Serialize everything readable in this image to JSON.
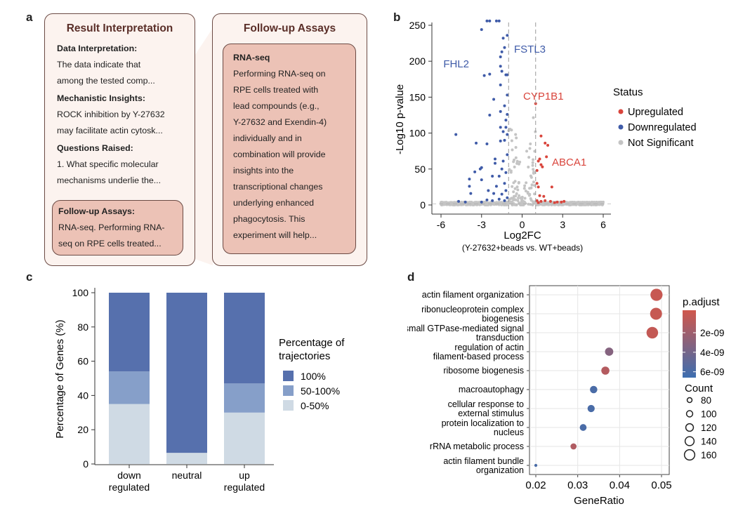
{
  "panel_labels": [
    "a",
    "b",
    "c",
    "d"
  ],
  "panel_a": {
    "left_card": {
      "title": "Result Interpretation",
      "sections": [
        {
          "heading": "Data Interpretation:",
          "lines": [
            "The data indicate that",
            "among the tested comp..."
          ]
        },
        {
          "heading": "Mechanistic Insights:",
          "lines": [
            "ROCK inhibition by Y-27632",
            "may facilitate actin cytosk..."
          ]
        },
        {
          "heading": "Questions Raised:",
          "lines": [
            "1. What specific molecular",
            "mechanisms underlie the..."
          ]
        }
      ],
      "highlight": {
        "heading": "Follow-up Assays:",
        "lines": [
          "RNA-seq. Performing RNA-",
          "seq on RPE cells treated..."
        ]
      }
    },
    "right_card": {
      "title": "Follow-up Assays",
      "inner": {
        "heading": "RNA-seq",
        "lines": [
          "Performing RNA-seq on",
          "RPE cells treated with",
          "lead compounds (e.g.,",
          "Y-27632 and Exendin-4)",
          "individually and in",
          "combination will provide",
          "insights into the",
          "transcriptional changes",
          "underlying enhanced",
          "phagocytosis. This",
          "experiment will help..."
        ]
      }
    }
  },
  "chart_data": [
    {
      "type": "scatter",
      "panel": "b",
      "xlabel": "Log2FC",
      "xlabel_sub": "(Y-27632+beads vs. WT+beads)",
      "ylabel": "-Log10 p-value",
      "xlim": [
        -6.4,
        6.4
      ],
      "ylim": [
        -5,
        255
      ],
      "xticks": [
        -6,
        -3,
        0,
        3,
        6
      ],
      "yticks": [
        0,
        50,
        100,
        150,
        200,
        250
      ],
      "thresholds_x": [
        -1,
        1
      ],
      "legend": {
        "title": "Status",
        "position": "right",
        "entries": [
          {
            "name": "Upregulated",
            "color": "#d9453c"
          },
          {
            "name": "Downregulated",
            "color": "#3f5ba8"
          },
          {
            "name": "Not Significant",
            "color": "#c4c4c4"
          }
        ]
      },
      "labels": [
        {
          "text": "FSTL3",
          "x": -1.3,
          "y": 219,
          "color": "#3f5ba8"
        },
        {
          "text": "FHL2",
          "x": -1.5,
          "y": 213,
          "color": "#3f5ba8"
        },
        {
          "text": "CYP1B1",
          "x": 1.0,
          "y": 141,
          "color": "#d9453c"
        },
        {
          "text": "ABCA1",
          "x": 1.8,
          "y": 85,
          "color": "#d9453c"
        }
      ],
      "points": {
        "Downregulated": [
          [
            -2.6,
            256
          ],
          [
            -2.4,
            256
          ],
          [
            -1.9,
            256
          ],
          [
            -1.7,
            256
          ],
          [
            -3.0,
            244
          ],
          [
            -1.4,
            232
          ],
          [
            -1.1,
            236
          ],
          [
            -1.3,
            219
          ],
          [
            -1.5,
            213
          ],
          [
            -1.6,
            206
          ],
          [
            -1.6,
            193
          ],
          [
            -2.8,
            180
          ],
          [
            -2.4,
            182
          ],
          [
            -1.5,
            186
          ],
          [
            -1.2,
            181
          ],
          [
            -1.1,
            181
          ],
          [
            -1.6,
            167
          ],
          [
            -1.1,
            153
          ],
          [
            -2.1,
            147
          ],
          [
            -1.3,
            138
          ],
          [
            -1.6,
            130
          ],
          [
            -2.4,
            125
          ],
          [
            -1.1,
            126
          ],
          [
            -1.2,
            118
          ],
          [
            -1.6,
            108
          ],
          [
            -1.4,
            102
          ],
          [
            -1.2,
            108
          ],
          [
            -4.9,
            98
          ],
          [
            -3.4,
            86
          ],
          [
            -2.6,
            85
          ],
          [
            -1.6,
            89
          ],
          [
            -1.3,
            90
          ],
          [
            -1.1,
            98
          ],
          [
            -1.1,
            70
          ],
          [
            -2.0,
            64
          ],
          [
            -1.4,
            61
          ],
          [
            -2.0,
            58
          ],
          [
            -3.0,
            52
          ],
          [
            -3.1,
            50
          ],
          [
            -3.5,
            46
          ],
          [
            -1.5,
            50
          ],
          [
            -2.2,
            40
          ],
          [
            -3.9,
            36
          ],
          [
            -3.0,
            35
          ],
          [
            -1.7,
            40
          ],
          [
            -1.2,
            45
          ],
          [
            -3.9,
            26
          ],
          [
            -2.5,
            20
          ],
          [
            -1.9,
            26
          ],
          [
            -3.8,
            16
          ],
          [
            -1.3,
            30
          ],
          [
            -2.1,
            16
          ],
          [
            -1.5,
            15
          ],
          [
            -1.2,
            20
          ],
          [
            -4.7,
            5
          ],
          [
            -4.2,
            4
          ],
          [
            -3.0,
            4
          ],
          [
            -2.6,
            7
          ],
          [
            -2.2,
            6
          ],
          [
            -1.7,
            8
          ],
          [
            -1.3,
            6
          ],
          [
            -1.1,
            10
          ]
        ],
        "Upregulated": [
          [
            1.0,
            141
          ],
          [
            1.4,
            96
          ],
          [
            1.7,
            86
          ],
          [
            1.9,
            83
          ],
          [
            1.3,
            64
          ],
          [
            1.2,
            61
          ],
          [
            1.8,
            67
          ],
          [
            1.4,
            56
          ],
          [
            1.5,
            53
          ],
          [
            1.1,
            48
          ],
          [
            1.1,
            30
          ],
          [
            1.2,
            25
          ],
          [
            2.2,
            25
          ],
          [
            1.3,
            13
          ],
          [
            1.6,
            12
          ],
          [
            1.1,
            6
          ],
          [
            1.4,
            5
          ],
          [
            1.7,
            6
          ],
          [
            2.1,
            5
          ],
          [
            2.6,
            4
          ],
          [
            3.1,
            5
          ],
          [
            2.9,
            4
          ],
          [
            1.2,
            3
          ],
          [
            2.4,
            3
          ]
        ]
      },
      "ns_envelope": "dense gray cloud |Log2FC|<1 rising to ~130, flat band along y≈0 from -6 to 6"
    },
    {
      "type": "bar",
      "stacked": true,
      "panel": "c",
      "categories": [
        "down\nregulated",
        "neutral",
        "up\nregulated"
      ],
      "ylabel": "Percentage of Genes (%)",
      "ylim": [
        0,
        100
      ],
      "yticks": [
        0,
        20,
        40,
        60,
        80,
        100
      ],
      "legend": {
        "title": "Percentage of\ntrajectories",
        "position": "right"
      },
      "series": [
        {
          "name": "0-50%",
          "color": "#cfdae4",
          "values": [
            35,
            6.5,
            30
          ]
        },
        {
          "name": "50-100%",
          "color": "#869fc9",
          "values": [
            19,
            0,
            17
          ]
        },
        {
          "name": "100%",
          "color": "#5670ad",
          "values": [
            46,
            93.5,
            53
          ]
        }
      ]
    },
    {
      "type": "scatter",
      "subtype": "dotplot",
      "panel": "d",
      "xlabel": "GeneRatio",
      "xlim": [
        0.0187,
        0.0522
      ],
      "xticks": [
        0.02,
        0.03,
        0.04,
        0.05
      ],
      "grid": true,
      "categories": [
        "actin filament organization",
        "ribonucleoprotein complex\nbiogenesis",
        "small GTPase-mediated signal\ntransduction",
        "regulation of actin\nfilament-based process",
        "ribosome biogenesis",
        "macroautophagy",
        "cellular response to\nexternal stimulus",
        "protein localization to\nnucleus",
        "rRNA metabolic process",
        "actin filament bundle\norganization"
      ],
      "x": [
        0.0488,
        0.0487,
        0.0478,
        0.0375,
        0.0366,
        0.0338,
        0.0332,
        0.0313,
        0.029,
        0.02
      ],
      "p_adjust": [
        1e-10,
        1.5e-10,
        3e-10,
        3.2e-09,
        1e-09,
        6e-09,
        6e-09,
        6e-09,
        1.2e-09,
        6e-09
      ],
      "count": [
        162,
        160,
        156,
        120,
        118,
        110,
        108,
        104,
        96,
        62
      ],
      "color_legend": {
        "title": "p.adjust",
        "ticks": [
          "2e-09",
          "4e-09",
          "6e-09"
        ],
        "tick_values": [
          2e-09,
          4e-09,
          6e-09
        ],
        "range": [
          -3e-10,
          6.6e-09
        ],
        "low_color": "#d0574c",
        "high_color": "#3d6eb0"
      },
      "size_legend": {
        "title": "Count",
        "values": [
          80,
          100,
          120,
          140,
          160
        ]
      }
    }
  ]
}
